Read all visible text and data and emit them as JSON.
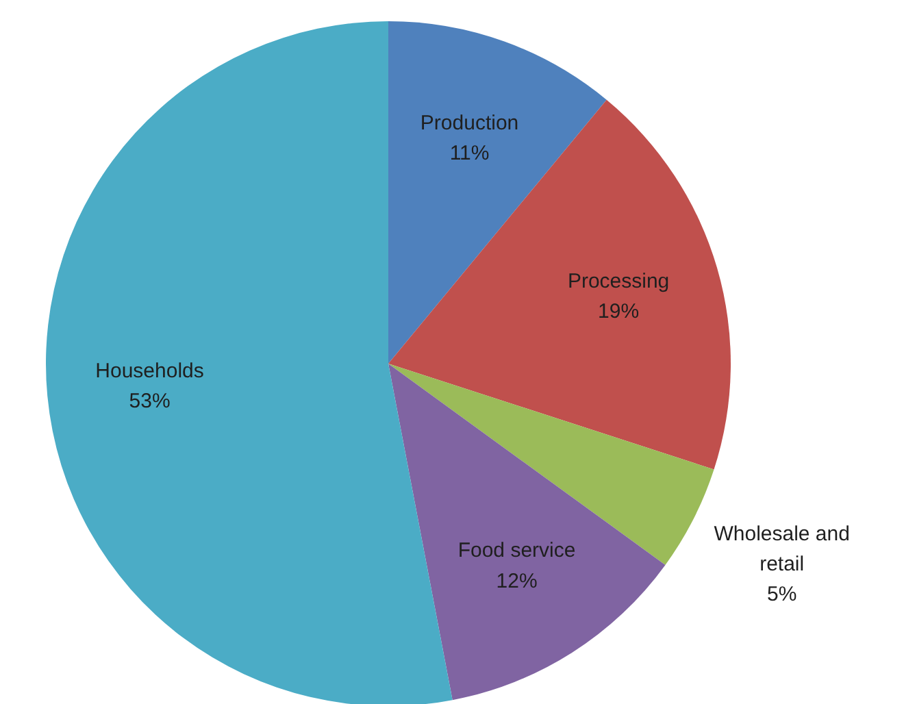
{
  "chart_data": {
    "type": "pie",
    "categories": [
      "Production",
      "Processing",
      "Wholesale and retail",
      "Food service",
      "Households"
    ],
    "values": [
      11,
      19,
      5,
      12,
      53
    ],
    "value_labels": [
      "11%",
      "19%",
      "5%",
      "12%",
      "53%"
    ],
    "colors": [
      "#4f81bd",
      "#c0504d",
      "#9bbb59",
      "#8064a2",
      "#4bacc6"
    ]
  }
}
